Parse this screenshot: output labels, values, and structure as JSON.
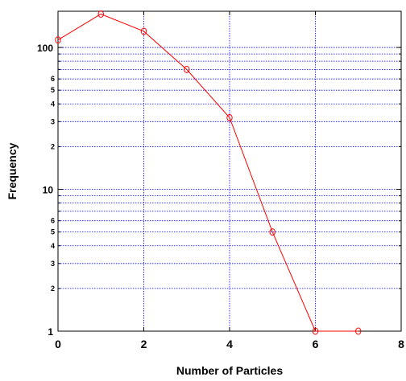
{
  "chart_data": {
    "type": "line",
    "title": "",
    "xlabel": "Number of Particles",
    "ylabel": "Frequency",
    "xlim": [
      0,
      8
    ],
    "ylim": [
      1,
      180
    ],
    "y_scale": "log",
    "grid": true,
    "x_ticks": [
      0,
      2,
      4,
      6,
      8
    ],
    "x_tick_labels": [
      "0",
      "2",
      "4",
      "6",
      "8"
    ],
    "y_major_ticks": [
      1,
      10,
      100
    ],
    "y_major_tick_labels": [
      "1",
      "10",
      "100"
    ],
    "y_minor_ticks": [
      2,
      3,
      4,
      5,
      6,
      20,
      30,
      40,
      50,
      60
    ],
    "y_minor_tick_labels": [
      "2",
      "3",
      "4",
      "5",
      "6",
      "2",
      "3",
      "4",
      "5",
      "6"
    ],
    "series": [
      {
        "x": [
          0,
          1,
          2,
          3,
          4,
          5,
          6,
          7
        ],
        "y": [
          113,
          172,
          130,
          70,
          32,
          5,
          1,
          1
        ],
        "color": "#ff0000",
        "marker": "circle"
      }
    ],
    "grid_color": "#0000ff",
    "axis_color": "#000000"
  }
}
